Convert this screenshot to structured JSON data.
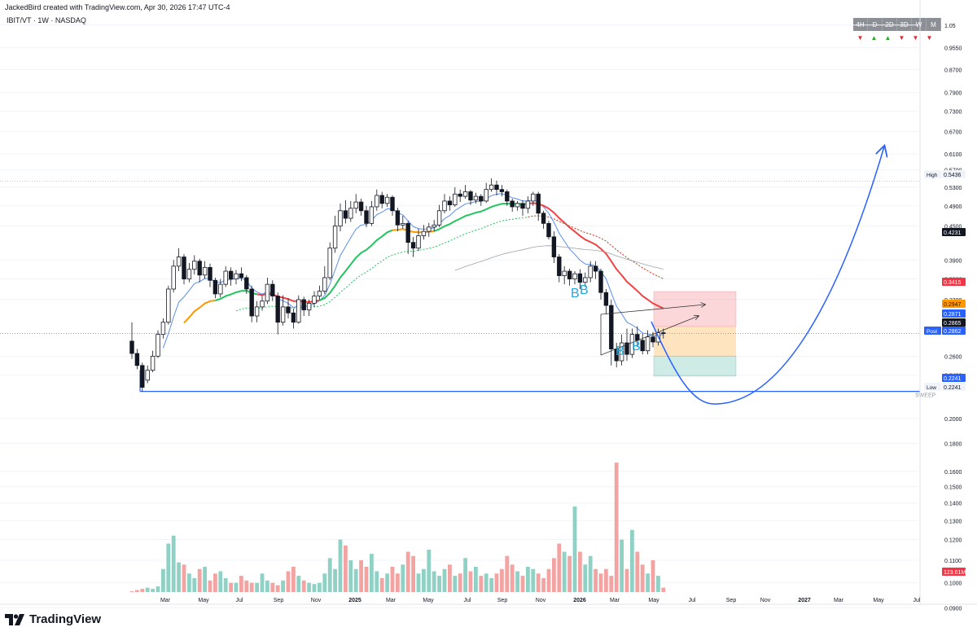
{
  "header": {
    "creator_line": "JackedBird created with TradingView.com, Apr 30, 2026 17:47 UTC-4",
    "symbol_line": "IBIT/VT · 1W · NASDAQ"
  },
  "footer": {
    "brand": "TradingView"
  },
  "timeframe_panel": {
    "labels": [
      "4H",
      "D",
      "2D",
      "3D",
      "W",
      "M"
    ],
    "directions": [
      "down",
      "up",
      "up",
      "down",
      "down",
      "down"
    ],
    "colors": {
      "up": "#22ab22",
      "down": "#e0262b",
      "header_bg": "#8c8f96"
    }
  },
  "chart_data": {
    "type": "candlestick",
    "title": "",
    "xlabel": "",
    "ylabel": "",
    "y_scale": "log",
    "ylim": [
      0.092,
      1.06
    ],
    "x_tick_labels": [
      "Mar",
      "May",
      "Jul",
      "Sep",
      "Nov",
      "2025",
      "Mar",
      "May",
      "Jul",
      "Sep",
      "Nov",
      "2026",
      "Mar",
      "May",
      "Jul",
      "Sep",
      "Nov",
      "2027",
      "Mar",
      "May",
      "Jul"
    ],
    "y_tick_labels": [
      "1.05",
      "0.9550",
      "0.8700",
      "0.7900",
      "0.7300",
      "0.6700",
      "0.6100",
      "0.5700",
      "0.5300",
      "0.4900",
      "0.4500",
      "0.3900",
      "0.3600",
      "0.3300",
      "0.2600",
      "0.2400",
      "0.2000",
      "0.1800",
      "0.1600",
      "0.1500",
      "0.1400",
      "0.1300",
      "0.1200",
      "0.1100",
      "0.1000",
      "0.0900"
    ],
    "price_labels": [
      {
        "label": "High",
        "value": "0.5436",
        "kind": "plain"
      },
      {
        "label": "",
        "value": "0.4231",
        "kind": "black"
      },
      {
        "label": "",
        "value": "0.3415",
        "kind": "red"
      },
      {
        "label": "",
        "value": "0.2947",
        "kind": "orange"
      },
      {
        "label": "",
        "value": "0.2871",
        "kind": "blue"
      },
      {
        "label": "",
        "value": "0.2865",
        "kind": "black"
      },
      {
        "label": "Post",
        "value": "0.2862",
        "kind": "blue"
      },
      {
        "label": "",
        "value": "0.2241",
        "kind": "blue"
      },
      {
        "label": "Low",
        "value": "0.2241",
        "kind": "plain"
      },
      {
        "label": "",
        "value": "123.61M",
        "kind": "red"
      }
    ],
    "annotations": [
      "B",
      "B",
      "B",
      "B",
      "SWEEP"
    ],
    "levels": {
      "high": 0.5436,
      "low": 0.2241,
      "current": 0.2862
    },
    "position_tool": {
      "entry": 0.2947,
      "stop": 0.3415,
      "target": 0.239
    },
    "candles": [
      [
        0.277,
        0.263,
        0.3,
        0.257
      ],
      [
        0.263,
        0.25,
        0.268,
        0.246
      ],
      [
        0.25,
        0.228,
        0.253,
        0.224
      ],
      [
        0.235,
        0.245,
        0.25,
        0.232
      ],
      [
        0.245,
        0.26,
        0.266,
        0.243
      ],
      [
        0.26,
        0.285,
        0.29,
        0.258
      ],
      [
        0.285,
        0.3,
        0.305,
        0.28
      ],
      [
        0.3,
        0.345,
        0.35,
        0.297
      ],
      [
        0.345,
        0.38,
        0.39,
        0.34
      ],
      [
        0.38,
        0.395,
        0.41,
        0.372
      ],
      [
        0.395,
        0.36,
        0.4,
        0.352
      ],
      [
        0.36,
        0.375,
        0.385,
        0.355
      ],
      [
        0.375,
        0.388,
        0.398,
        0.367
      ],
      [
        0.388,
        0.366,
        0.392,
        0.355
      ],
      [
        0.366,
        0.378,
        0.388,
        0.36
      ],
      [
        0.378,
        0.358,
        0.384,
        0.348
      ],
      [
        0.358,
        0.338,
        0.362,
        0.332
      ],
      [
        0.338,
        0.352,
        0.36,
        0.333
      ],
      [
        0.352,
        0.372,
        0.38,
        0.348
      ],
      [
        0.372,
        0.36,
        0.378,
        0.35
      ],
      [
        0.36,
        0.368,
        0.374,
        0.352
      ],
      [
        0.368,
        0.362,
        0.378,
        0.357
      ],
      [
        0.362,
        0.345,
        0.366,
        0.338
      ],
      [
        0.345,
        0.308,
        0.35,
        0.3
      ],
      [
        0.308,
        0.32,
        0.328,
        0.3
      ],
      [
        0.32,
        0.328,
        0.336,
        0.315
      ],
      [
        0.328,
        0.352,
        0.362,
        0.324
      ],
      [
        0.352,
        0.335,
        0.358,
        0.328
      ],
      [
        0.335,
        0.3,
        0.34,
        0.285
      ],
      [
        0.3,
        0.32,
        0.336,
        0.296
      ],
      [
        0.32,
        0.312,
        0.332,
        0.305
      ],
      [
        0.312,
        0.3,
        0.318,
        0.292
      ],
      [
        0.3,
        0.33,
        0.336,
        0.298
      ],
      [
        0.33,
        0.316,
        0.334,
        0.308
      ],
      [
        0.316,
        0.325,
        0.33,
        0.308
      ],
      [
        0.325,
        0.335,
        0.342,
        0.32
      ],
      [
        0.335,
        0.342,
        0.35,
        0.33
      ],
      [
        0.342,
        0.362,
        0.38,
        0.338
      ],
      [
        0.362,
        0.41,
        0.42,
        0.358
      ],
      [
        0.41,
        0.45,
        0.47,
        0.402
      ],
      [
        0.45,
        0.48,
        0.495,
        0.44
      ],
      [
        0.48,
        0.465,
        0.502,
        0.455
      ],
      [
        0.465,
        0.485,
        0.5,
        0.458
      ],
      [
        0.485,
        0.498,
        0.515,
        0.475
      ],
      [
        0.498,
        0.48,
        0.505,
        0.47
      ],
      [
        0.48,
        0.455,
        0.49,
        0.448
      ],
      [
        0.455,
        0.488,
        0.5,
        0.45
      ],
      [
        0.488,
        0.512,
        0.525,
        0.48
      ],
      [
        0.512,
        0.495,
        0.52,
        0.485
      ],
      [
        0.495,
        0.508,
        0.515,
        0.488
      ],
      [
        0.508,
        0.48,
        0.512,
        0.47
      ],
      [
        0.48,
        0.452,
        0.486,
        0.44
      ],
      [
        0.452,
        0.455,
        0.47,
        0.445
      ],
      [
        0.455,
        0.42,
        0.46,
        0.4
      ],
      [
        0.42,
        0.41,
        0.43,
        0.395
      ],
      [
        0.41,
        0.432,
        0.445,
        0.405
      ],
      [
        0.432,
        0.44,
        0.452,
        0.425
      ],
      [
        0.44,
        0.448,
        0.456,
        0.43
      ],
      [
        0.448,
        0.452,
        0.462,
        0.44
      ],
      [
        0.452,
        0.48,
        0.492,
        0.448
      ],
      [
        0.48,
        0.5,
        0.515,
        0.475
      ],
      [
        0.5,
        0.492,
        0.51,
        0.48
      ],
      [
        0.492,
        0.515,
        0.53,
        0.488
      ],
      [
        0.515,
        0.51,
        0.525,
        0.498
      ],
      [
        0.51,
        0.52,
        0.535,
        0.505
      ],
      [
        0.52,
        0.502,
        0.524,
        0.492
      ],
      [
        0.502,
        0.51,
        0.518,
        0.495
      ],
      [
        0.51,
        0.5,
        0.515,
        0.49
      ],
      [
        0.5,
        0.525,
        0.54,
        0.496
      ],
      [
        0.525,
        0.535,
        0.55,
        0.52
      ],
      [
        0.535,
        0.525,
        0.545,
        0.512
      ],
      [
        0.525,
        0.52,
        0.535,
        0.51
      ],
      [
        0.52,
        0.5,
        0.525,
        0.49
      ],
      [
        0.5,
        0.488,
        0.505,
        0.478
      ],
      [
        0.488,
        0.495,
        0.5,
        0.48
      ],
      [
        0.495,
        0.485,
        0.502,
        0.47
      ],
      [
        0.485,
        0.5,
        0.51,
        0.475
      ],
      [
        0.5,
        0.515,
        0.52,
        0.49
      ],
      [
        0.515,
        0.475,
        0.52,
        0.46
      ],
      [
        0.475,
        0.455,
        0.48,
        0.445
      ],
      [
        0.455,
        0.43,
        0.46,
        0.425
      ],
      [
        0.43,
        0.395,
        0.44,
        0.385
      ],
      [
        0.395,
        0.365,
        0.4,
        0.355
      ],
      [
        0.365,
        0.372,
        0.38,
        0.352
      ],
      [
        0.372,
        0.36,
        0.376,
        0.35
      ],
      [
        0.36,
        0.368,
        0.372,
        0.352
      ],
      [
        0.368,
        0.355,
        0.375,
        0.345
      ],
      [
        0.355,
        0.362,
        0.37,
        0.348
      ],
      [
        0.362,
        0.38,
        0.388,
        0.355
      ],
      [
        0.38,
        0.372,
        0.388,
        0.36
      ],
      [
        0.372,
        0.34,
        0.376,
        0.33
      ],
      [
        0.34,
        0.322,
        0.345,
        0.31
      ],
      [
        0.322,
        0.268,
        0.33,
        0.25
      ],
      [
        0.268,
        0.255,
        0.275,
        0.248
      ],
      [
        0.255,
        0.275,
        0.285,
        0.25
      ],
      [
        0.275,
        0.262,
        0.292,
        0.255
      ],
      [
        0.262,
        0.285,
        0.292,
        0.258
      ],
      [
        0.285,
        0.278,
        0.295,
        0.27
      ],
      [
        0.278,
        0.266,
        0.286,
        0.262
      ],
      [
        0.266,
        0.282,
        0.29,
        0.262
      ],
      [
        0.282,
        0.276,
        0.288,
        0.27
      ],
      [
        0.276,
        0.287,
        0.292,
        0.272
      ],
      [
        0.287,
        0.2865,
        0.292,
        0.28
      ]
    ],
    "volume": [
      0.0965,
      0.097,
      0.0975,
      0.098,
      0.0975,
      0.0985,
      0.106,
      0.118,
      0.122,
      0.109,
      0.108,
      0.104,
      0.102,
      0.106,
      0.107,
      0.101,
      0.104,
      0.105,
      0.102,
      0.1,
      0.1,
      0.103,
      0.101,
      0.1,
      0.1,
      0.104,
      0.101,
      0.1,
      0.099,
      0.101,
      0.105,
      0.107,
      0.103,
      0.101,
      0.1,
      0.0995,
      0.1,
      0.104,
      0.111,
      0.106,
      0.12,
      0.117,
      0.11,
      0.106,
      0.11,
      0.107,
      0.113,
      0.105,
      0.102,
      0.104,
      0.107,
      0.104,
      0.108,
      0.114,
      0.112,
      0.104,
      0.106,
      0.115,
      0.105,
      0.103,
      0.106,
      0.108,
      0.103,
      0.104,
      0.111,
      0.105,
      0.107,
      0.103,
      0.104,
      0.102,
      0.104,
      0.106,
      0.112,
      0.108,
      0.105,
      0.103,
      0.107,
      0.106,
      0.104,
      0.102,
      0.106,
      0.111,
      0.118,
      0.114,
      0.112,
      0.138,
      0.114,
      0.108,
      0.112,
      0.106,
      0.104,
      0.106,
      0.103,
      0.166,
      0.12,
      0.106,
      0.125,
      0.114,
      0.108,
      0.104,
      0.11,
      0.103,
      0.098
    ]
  }
}
